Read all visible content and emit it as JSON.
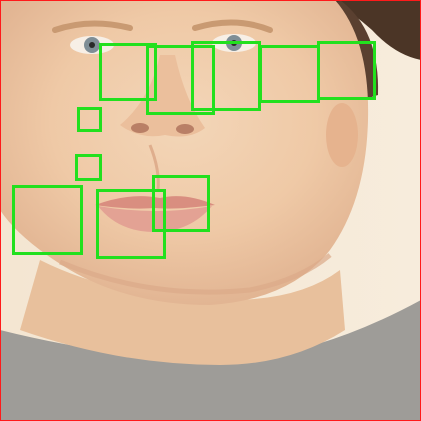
{
  "image": {
    "subject": "photo-face",
    "colors": {
      "background": "#f6ead8",
      "skin": "#efc9a6",
      "hair": "#4b3526",
      "shirt": "#9e9c98",
      "border": "#ff1a1a",
      "detection_box": "#22e01e"
    }
  }
}
